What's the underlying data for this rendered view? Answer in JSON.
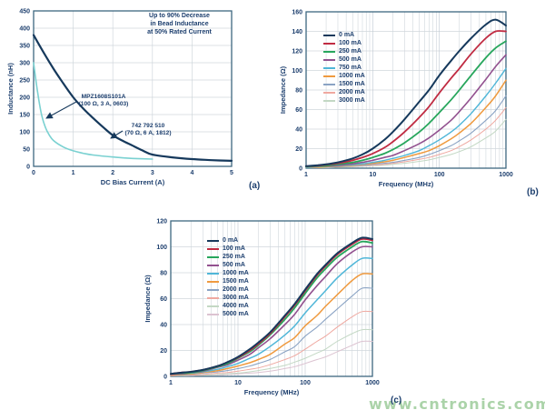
{
  "page": {
    "background": "#ffffff",
    "watermark": "www.cntronics.com",
    "watermark_color": "#a3cfa0",
    "text_color": "#1d3f6e",
    "grid_color": "#d0d7dc",
    "grid_major_color": "#bfc9d1",
    "border_color": "#3d6780"
  },
  "chart_data": [
    {
      "id": "a",
      "type": "line",
      "sublabel": "(a)",
      "xlabel": "DC Bias Current (A)",
      "ylabel": "Inductance (nH)",
      "xscale": "linear",
      "xlim": [
        0,
        5
      ],
      "ylim": [
        0,
        450
      ],
      "xticks": [
        0,
        1,
        2,
        3,
        4,
        5
      ],
      "ytick_step": 50,
      "grid": true,
      "legend_position": "none",
      "note": "Up to 90% Decrease\nin Bead Inductance\nat 50% Rated Current",
      "series": [
        {
          "name": "742 792 510 (70 Ω, 6 A, 1812)",
          "color": "#16395c",
          "width": 2.2,
          "x": [
            0,
            0.25,
            0.5,
            0.75,
            1,
            1.25,
            1.5,
            1.75,
            2,
            2.25,
            2.5,
            2.75,
            3,
            3.5,
            4,
            4.5,
            5
          ],
          "y": [
            380,
            330,
            283,
            240,
            200,
            168,
            140,
            114,
            90,
            74,
            60,
            46,
            34,
            26,
            21,
            18,
            16
          ]
        },
        {
          "name": "MPZ1608S101A (100 Ω, 3 A, 0603)",
          "color": "#7ad1d1",
          "width": 1.6,
          "x": [
            0,
            0.1,
            0.2,
            0.3,
            0.4,
            0.5,
            0.75,
            1,
            1.25,
            1.5,
            2,
            2.5,
            3
          ],
          "y": [
            300,
            215,
            150,
            112,
            90,
            75,
            56,
            45,
            38,
            33,
            27,
            23,
            21
          ]
        }
      ],
      "annotations": [
        {
          "label": "MPZ1608S101A\n(100 Ω, 3 A, 0603)"
        },
        {
          "label": "742 792 510\n(70 Ω, 6 A, 1812)"
        }
      ]
    },
    {
      "id": "b",
      "type": "line",
      "sublabel": "(b)",
      "xlabel": "Frequency (MHz)",
      "ylabel": "Impedance (Ω)",
      "xscale": "log",
      "xlim": [
        1,
        1000
      ],
      "ylim": [
        0,
        160
      ],
      "xticks": [
        1,
        10,
        100,
        1000
      ],
      "ytick_step": 20,
      "grid": true,
      "legend_position": "upper-left",
      "x": [
        1,
        1.5,
        2,
        3,
        5,
        7,
        10,
        15,
        20,
        30,
        50,
        70,
        100,
        150,
        200,
        300,
        500,
        700,
        1000
      ],
      "series": [
        {
          "name": "0 mA",
          "color": "#16395c",
          "width": 2.0,
          "values": [
            2,
            3,
            4,
            6,
            10,
            14,
            20,
            29,
            37,
            50,
            68,
            80,
            95,
            110,
            120,
            133,
            147,
            152,
            146
          ]
        },
        {
          "name": "100 mA",
          "color": "#c02b42",
          "width": 1.8,
          "values": [
            2,
            2.5,
            3.5,
            5,
            8,
            11,
            15,
            21,
            27,
            37,
            52,
            63,
            77,
            92,
            102,
            117,
            133,
            140,
            140
          ]
        },
        {
          "name": "250 mA",
          "color": "#27a65c",
          "width": 1.8,
          "values": [
            1.5,
            2,
            2.5,
            4,
            6,
            8,
            11,
            15,
            19,
            26,
            37,
            46,
            57,
            70,
            80,
            95,
            113,
            123,
            130
          ]
        },
        {
          "name": "500 mA",
          "color": "#92518f",
          "width": 1.6,
          "values": [
            1.5,
            2,
            2,
            3,
            4.5,
            6,
            8,
            11,
            13,
            18,
            25,
            31,
            39,
            49,
            58,
            72,
            91,
            104,
            116
          ]
        },
        {
          "name": "750 mA",
          "color": "#4fb6d8",
          "width": 1.4,
          "values": [
            1,
            1.5,
            2,
            2.5,
            3.5,
            4.5,
            6,
            8,
            10,
            13,
            18,
            23,
            29,
            37,
            44,
            56,
            74,
            87,
            102
          ]
        },
        {
          "name": "1000 mA",
          "color": "#ef9a3f",
          "width": 1.5,
          "values": [
            1,
            1,
            1.5,
            2,
            3,
            4,
            5,
            6.5,
            8,
            11,
            15,
            18,
            23,
            30,
            36,
            46,
            62,
            74,
            90
          ]
        },
        {
          "name": "1500 mA",
          "color": "#8aa3c4",
          "width": 1.1,
          "values": [
            0.5,
            1,
            1,
            1.5,
            2.5,
            3,
            4,
            5,
            6,
            8,
            11,
            14,
            18,
            23,
            28,
            36,
            49,
            59,
            74
          ]
        },
        {
          "name": "2000 mA",
          "color": "#efa8a0",
          "width": 1.0,
          "values": [
            0.5,
            0.5,
            1,
            1.5,
            2,
            2.5,
            3,
            4,
            5,
            6.5,
            9,
            11,
            14,
            18,
            22,
            29,
            40,
            49,
            62
          ]
        },
        {
          "name": "3000 mA",
          "color": "#c3d8c4",
          "width": 1.0,
          "values": [
            0.5,
            0.5,
            0.5,
            1,
            1.5,
            2,
            2.5,
            3,
            4,
            5,
            7,
            8.5,
            11,
            14,
            17,
            22,
            31,
            38,
            50
          ]
        }
      ]
    },
    {
      "id": "c",
      "type": "line",
      "sublabel": "(c)",
      "xlabel": "Frequency (MHz)",
      "ylabel": "Impedance (Ω)",
      "xscale": "log",
      "xlim": [
        1,
        1000
      ],
      "ylim": [
        0,
        120
      ],
      "xticks": [
        1,
        10,
        100,
        1000
      ],
      "ytick_step": 20,
      "grid": true,
      "legend_position": "upper-left",
      "x": [
        1,
        1.5,
        2,
        3,
        5,
        7,
        10,
        15,
        20,
        30,
        50,
        70,
        100,
        150,
        200,
        300,
        500,
        700,
        1000
      ],
      "series": [
        {
          "name": "0 mA",
          "color": "#16395c",
          "width": 2.0,
          "values": [
            2,
            3,
            3.5,
            5,
            8,
            11,
            15,
            21,
            26,
            34,
            47,
            56,
            67,
            79,
            86,
            95,
            103,
            107,
            106
          ]
        },
        {
          "name": "100 mA",
          "color": "#c02b42",
          "width": 1.8,
          "values": [
            2,
            3,
            3.5,
            5,
            8,
            11,
            14.5,
            20,
            25,
            33,
            46,
            55,
            66,
            78,
            85,
            94,
            102,
            106,
            105
          ]
        },
        {
          "name": "250 mA",
          "color": "#27a65c",
          "width": 1.8,
          "values": [
            2,
            2.5,
            3,
            4.5,
            7.5,
            10,
            14,
            19,
            24,
            32,
            44,
            53,
            64,
            76,
            83,
            92,
            100,
            104,
            103
          ]
        },
        {
          "name": "500 mA",
          "color": "#92518f",
          "width": 1.6,
          "values": [
            1.5,
            2,
            3,
            4,
            7,
            9,
            12.5,
            17,
            22,
            29,
            40,
            48,
            59,
            70,
            77,
            87,
            96,
            100,
            100
          ]
        },
        {
          "name": "1000 mA",
          "color": "#4fb6d8",
          "width": 1.5,
          "values": [
            1.5,
            2,
            2.5,
            3.5,
            5.5,
            7.5,
            10,
            14,
            17,
            23,
            32,
            39,
            49,
            59,
            66,
            76,
            86,
            91,
            91
          ]
        },
        {
          "name": "1500 mA",
          "color": "#ef9a3f",
          "width": 1.5,
          "values": [
            1,
            1.5,
            2,
            3,
            4.5,
            6,
            8,
            10.5,
            13,
            17,
            25,
            30,
            39,
            47,
            54,
            63,
            74,
            79,
            79
          ]
        },
        {
          "name": "2000 mA",
          "color": "#8aa3c4",
          "width": 1.1,
          "values": [
            1,
            1,
            1.5,
            2.5,
            3.5,
            4.5,
            6,
            8,
            10,
            13,
            19,
            23,
            31,
            38,
            44,
            52,
            62,
            68,
            68
          ]
        },
        {
          "name": "3000 mA",
          "color": "#efa8a0",
          "width": 1.0,
          "values": [
            0.5,
            1,
            1,
            1.5,
            2.5,
            3,
            4,
            5.5,
            6.5,
            9,
            13,
            16,
            21,
            27,
            31,
            38,
            46,
            50,
            50
          ]
        },
        {
          "name": "4000 mA",
          "color": "#c3d8c4",
          "width": 1.0,
          "values": [
            0.5,
            0.5,
            1,
            1,
            1.5,
            2,
            2.5,
            3.5,
            4.5,
            6,
            8.5,
            11,
            14,
            18,
            21,
            27,
            33,
            36,
            36
          ]
        },
        {
          "name": "5000 mA",
          "color": "#dcc3d1",
          "width": 1.0,
          "values": [
            0.5,
            0.5,
            0.5,
            1,
            1,
            1.5,
            2,
            2.5,
            3,
            4,
            6,
            7.5,
            10,
            13,
            15,
            19,
            24,
            27,
            27
          ]
        }
      ]
    }
  ]
}
